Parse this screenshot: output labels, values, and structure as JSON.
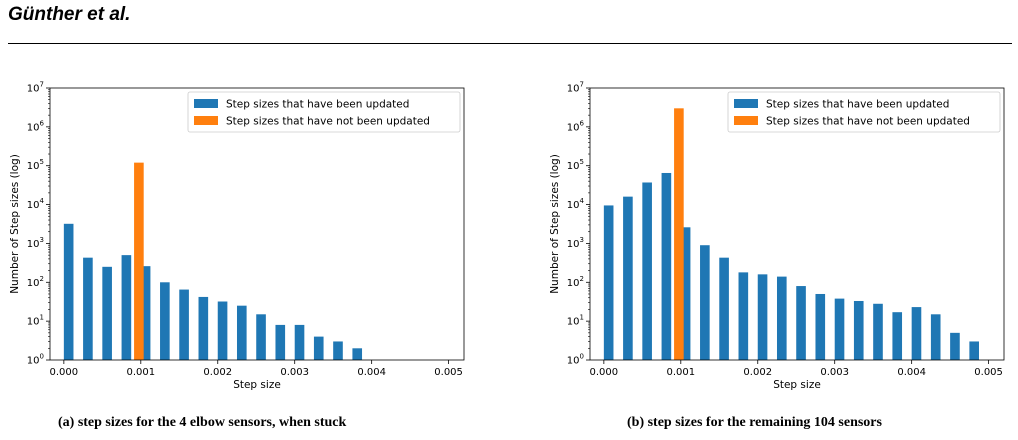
{
  "header": {
    "title": "Günther et al."
  },
  "colors": {
    "updated": "#1f77b4",
    "not_updated": "#ff7f0e"
  },
  "chart_data": [
    {
      "type": "bar",
      "caption": "(a) step sizes for the 4 elbow sensors, when stuck",
      "xlabel": "Step size",
      "ylabel": "Number of Step sizes (log)",
      "yscale": "log",
      "xlim": [
        -0.00018,
        0.0052
      ],
      "ylim_exp": [
        0,
        7
      ],
      "xticks": [
        0.0,
        0.001,
        0.002,
        0.003,
        0.004,
        0.005
      ],
      "xtick_labels": [
        "0.000",
        "0.001",
        "0.002",
        "0.003",
        "0.004",
        "0.005"
      ],
      "ytick_exps": [
        0,
        1,
        2,
        3,
        4,
        5,
        6,
        7
      ],
      "bar_width": 0.000125,
      "legend_position": "top-right",
      "series": [
        {
          "name": "Step sizes that have been updated",
          "x": [
            6.25e-05,
            0.0003125,
            0.0005625,
            0.0008125,
            0.0010625,
            0.0013125,
            0.0015625,
            0.0018125,
            0.0020625,
            0.0023125,
            0.0025625,
            0.0028125,
            0.0030625,
            0.0033125,
            0.0035625,
            0.0038125
          ],
          "values": [
            3200,
            430,
            250,
            500,
            260,
            100,
            65,
            42,
            32,
            25,
            15,
            8,
            8,
            4,
            3,
            2
          ]
        },
        {
          "name": "Step sizes that have not been updated",
          "x": [
            0.000975
          ],
          "values": [
            120000
          ]
        }
      ]
    },
    {
      "type": "bar",
      "caption": "(b) step sizes for the remaining 104 sensors",
      "xlabel": "Step size",
      "ylabel": "Number of Step sizes (log)",
      "yscale": "log",
      "xlim": [
        -0.00018,
        0.0052
      ],
      "ylim_exp": [
        0,
        7
      ],
      "xticks": [
        0.0,
        0.001,
        0.002,
        0.003,
        0.004,
        0.005
      ],
      "xtick_labels": [
        "0.000",
        "0.001",
        "0.002",
        "0.003",
        "0.004",
        "0.005"
      ],
      "ytick_exps": [
        0,
        1,
        2,
        3,
        4,
        5,
        6,
        7
      ],
      "bar_width": 0.000125,
      "legend_position": "top-right",
      "series": [
        {
          "name": "Step sizes that have been updated",
          "x": [
            6.25e-05,
            0.0003125,
            0.0005625,
            0.0008125,
            0.0010625,
            0.0013125,
            0.0015625,
            0.0018125,
            0.0020625,
            0.0023125,
            0.0025625,
            0.0028125,
            0.0030625,
            0.0033125,
            0.0035625,
            0.0038125,
            0.0040625,
            0.0043125,
            0.0045625,
            0.0048125
          ],
          "values": [
            9500,
            16000,
            37000,
            65000,
            2600,
            900,
            430,
            180,
            160,
            140,
            80,
            50,
            38,
            33,
            28,
            17,
            23,
            15,
            5,
            3
          ]
        },
        {
          "name": "Step sizes that have not been updated",
          "x": [
            0.000975
          ],
          "values": [
            3000000
          ]
        }
      ]
    }
  ]
}
